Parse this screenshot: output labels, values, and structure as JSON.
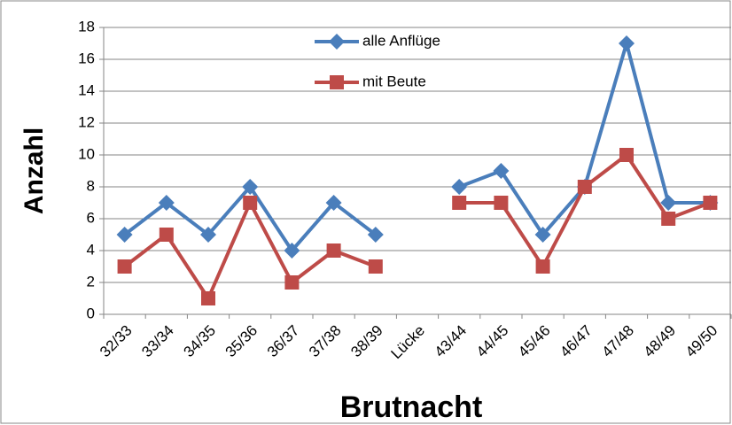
{
  "chart_data": {
    "type": "line",
    "x_label": "Brutnacht",
    "y_label": "Anzahl",
    "categories": [
      "32/33",
      "33/34",
      "34/35",
      "35/36",
      "36/37",
      "37/38",
      "38/39",
      "Lücke",
      "43/44",
      "44/45",
      "45/46",
      "46/47",
      "47/48",
      "48/49",
      "49/50"
    ],
    "series": [
      {
        "name": "alle Anflüge",
        "color": "#4a7ebb",
        "marker": "diamond",
        "values": [
          5,
          7,
          5,
          8,
          4,
          7,
          5,
          null,
          8,
          9,
          5,
          8,
          17,
          7,
          7
        ]
      },
      {
        "name": "mit Beute",
        "color": "#be4b48",
        "marker": "square",
        "values": [
          3,
          5,
          1,
          7,
          2,
          4,
          3,
          null,
          7,
          7,
          3,
          8,
          10,
          6,
          7
        ]
      }
    ],
    "ylim": [
      0,
      18
    ],
    "yticks": [
      0,
      2,
      4,
      6,
      8,
      10,
      12,
      14,
      16,
      18
    ],
    "grid": true,
    "legend": "top"
  }
}
